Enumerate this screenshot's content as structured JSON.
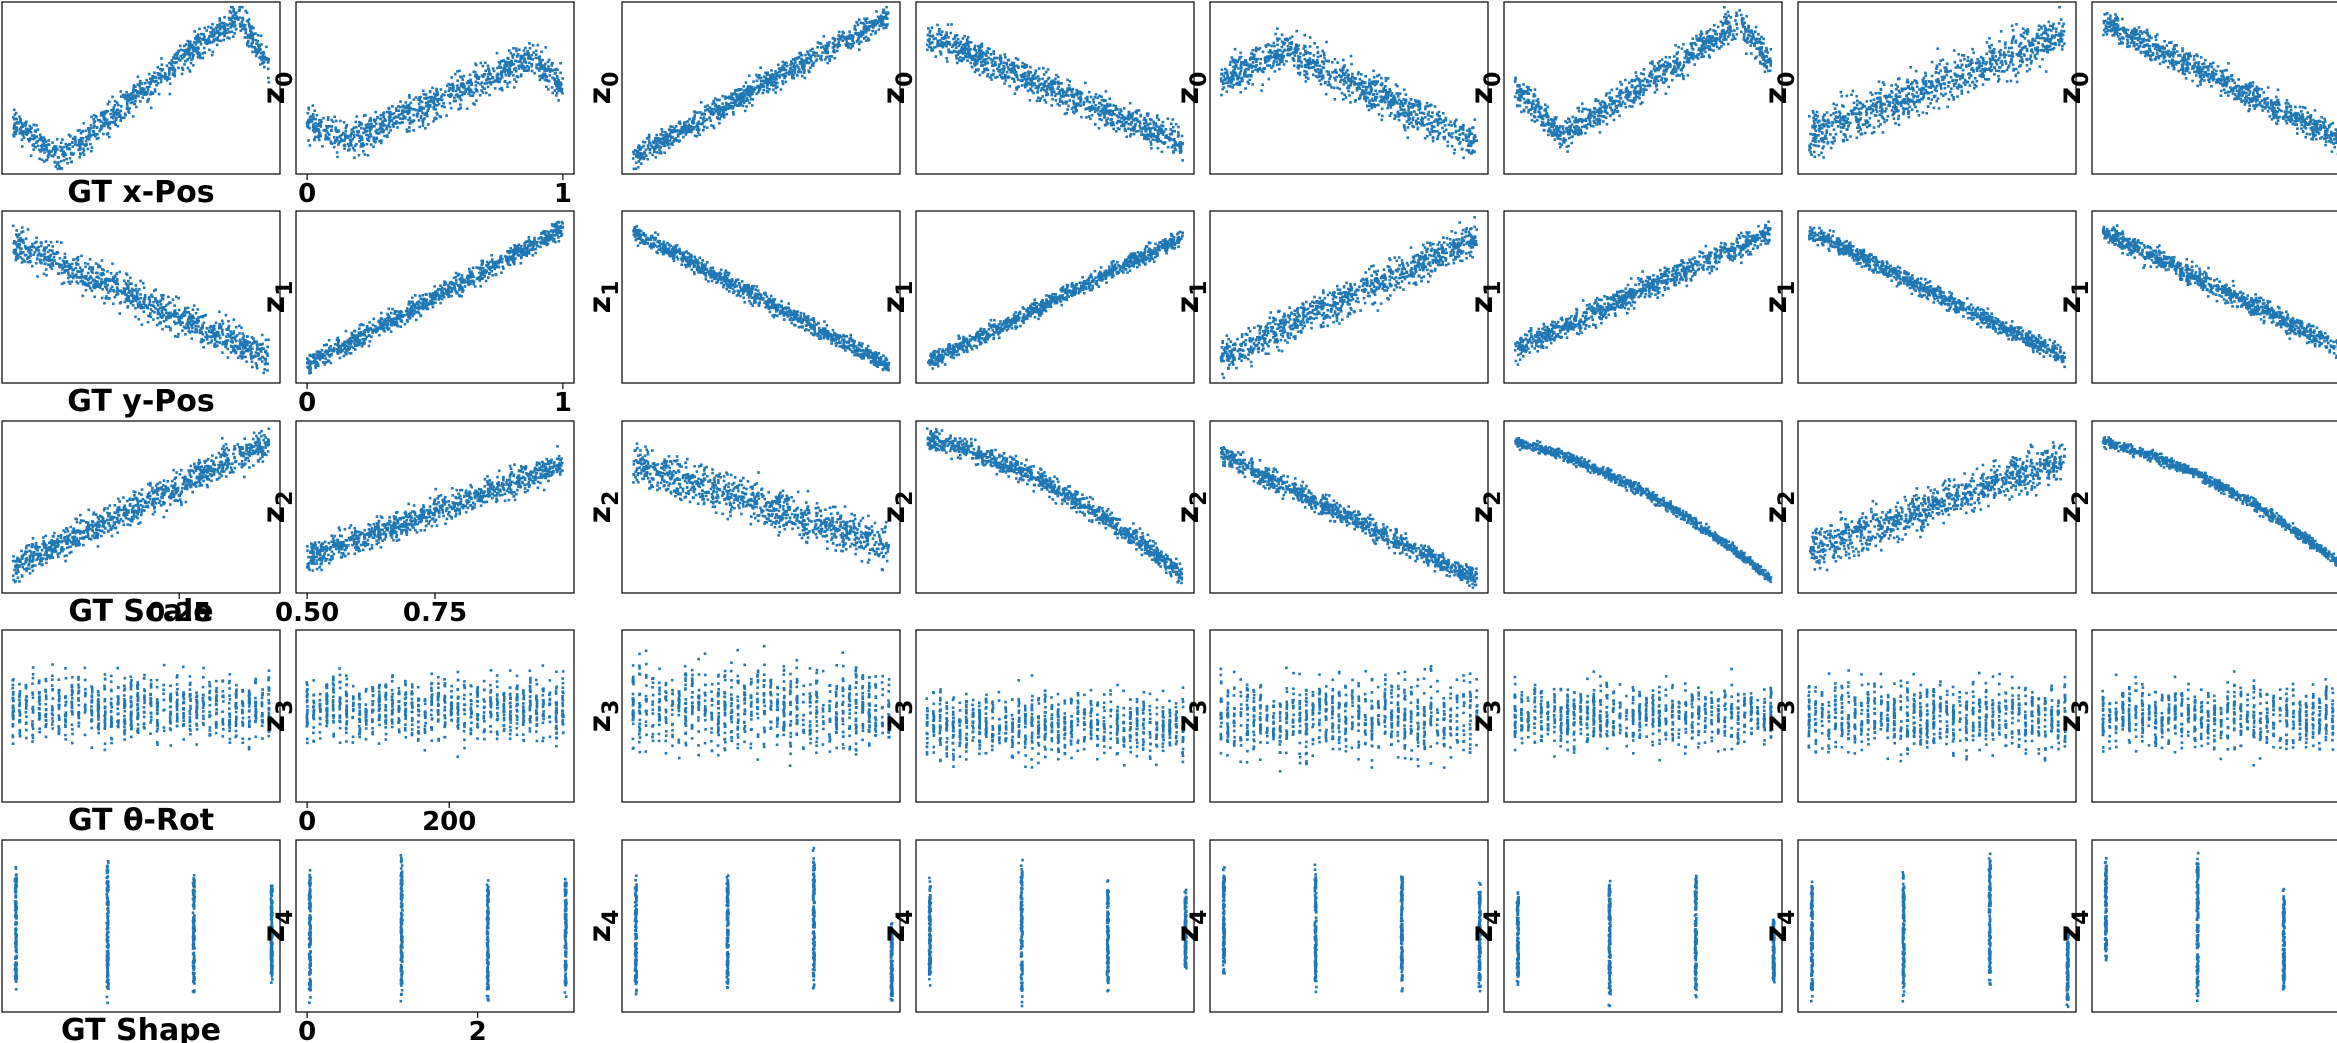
{
  "figure": {
    "point_color": "#1f77b4",
    "latent_symbol": "z",
    "rows": [
      {
        "latent": "0",
        "gt_label": "GT x-Pos",
        "gt_range": [
          0,
          1
        ],
        "ticks": [
          {
            "value": 0,
            "label": "0"
          },
          {
            "value": 1,
            "label": "1"
          }
        ]
      },
      {
        "latent": "1",
        "gt_label": "GT y-Pos",
        "gt_range": [
          0,
          1
        ],
        "ticks": [
          {
            "value": 0,
            "label": "0"
          },
          {
            "value": 1,
            "label": "1"
          }
        ]
      },
      {
        "latent": "2",
        "gt_label": "GT Scale",
        "gt_range": [
          0.5,
          1
        ],
        "ticks": [
          {
            "value": 0.25,
            "label": "0.25"
          },
          {
            "value": 0.5,
            "label": "0.50"
          },
          {
            "value": 0.75,
            "label": "0.75"
          }
        ]
      },
      {
        "latent": "3",
        "gt_label": "GT θ-Rot",
        "gt_range": [
          0,
          360
        ],
        "ticks": [
          {
            "value": 0,
            "label": "0"
          },
          {
            "value": 200,
            "label": "200"
          }
        ]
      },
      {
        "latent": "4",
        "gt_label": "GT Shape",
        "gt_range": [
          0,
          3
        ],
        "ticks": [
          {
            "value": 0,
            "label": "0"
          },
          {
            "value": 2,
            "label": "2"
          }
        ]
      }
    ]
  },
  "chart_data": {
    "type": "scatter",
    "layout": "5 rows x 8 columns",
    "x_values": "ground-truth factor per row",
    "y_values": "latent dimension z0..z4 per row",
    "columns": 8,
    "panels": [
      [
        {
          "relation": "sine",
          "start": 0.3,
          "mid": 0.1,
          "peak": 0.92,
          "spread": 0.09
        },
        {
          "relation": "sine",
          "start": 0.3,
          "mid": 0.2,
          "peak": 0.68,
          "spread": 0.1
        },
        {
          "relation": "linear",
          "from": 0.1,
          "to": 0.92,
          "spread": 0.07
        },
        {
          "relation": "linear",
          "from": 0.8,
          "to": 0.18,
          "spread": 0.09
        },
        {
          "relation": "hump",
          "from": 0.55,
          "peak": 0.72,
          "to": 0.18,
          "spread": 0.11
        },
        {
          "relation": "sine",
          "start": 0.5,
          "mid": 0.22,
          "peak": 0.88,
          "spread": 0.09
        },
        {
          "relation": "linear",
          "from": 0.22,
          "to": 0.82,
          "spread": 0.13
        },
        {
          "relation": "linear",
          "from": 0.88,
          "to": 0.15,
          "spread": 0.08
        }
      ],
      [
        {
          "relation": "linear",
          "from": 0.82,
          "to": 0.15,
          "spread": 0.1
        },
        {
          "relation": "linear",
          "from": 0.1,
          "to": 0.9,
          "spread": 0.06
        },
        {
          "relation": "linear",
          "from": 0.88,
          "to": 0.1,
          "spread": 0.05
        },
        {
          "relation": "linear",
          "from": 0.12,
          "to": 0.85,
          "spread": 0.05
        },
        {
          "relation": "linear",
          "from": 0.15,
          "to": 0.85,
          "spread": 0.1
        },
        {
          "relation": "linear",
          "from": 0.2,
          "to": 0.88,
          "spread": 0.07
        },
        {
          "relation": "linear",
          "from": 0.88,
          "to": 0.15,
          "spread": 0.05
        },
        {
          "relation": "linear",
          "from": 0.88,
          "to": 0.15,
          "spread": 0.06
        }
      ],
      [
        {
          "relation": "linear",
          "from": 0.15,
          "to": 0.88,
          "spread": 0.09
        },
        {
          "relation": "linear",
          "from": 0.2,
          "to": 0.75,
          "spread": 0.08
        },
        {
          "relation": "linear",
          "from": 0.75,
          "to": 0.28,
          "spread": 0.12
        },
        {
          "relation": "concave",
          "from": 0.9,
          "to": 0.1,
          "spread": 0.06
        },
        {
          "relation": "linear",
          "from": 0.8,
          "to": 0.08,
          "spread": 0.06
        },
        {
          "relation": "concave",
          "from": 0.88,
          "to": 0.08,
          "spread": 0.03
        },
        {
          "relation": "linear",
          "from": 0.25,
          "to": 0.78,
          "spread": 0.12
        },
        {
          "relation": "concave",
          "from": 0.88,
          "to": 0.08,
          "spread": 0.03
        }
      ],
      [
        {
          "relation": "noise",
          "center": 0.55,
          "spread": 0.16,
          "bands": 40
        },
        {
          "relation": "noise",
          "center": 0.55,
          "spread": 0.16,
          "bands": 40
        },
        {
          "relation": "noise",
          "center": 0.55,
          "spread": 0.22,
          "bands": 40
        },
        {
          "relation": "noise",
          "center": 0.45,
          "spread": 0.16,
          "bands": 40
        },
        {
          "relation": "noise",
          "center": 0.5,
          "spread": 0.2,
          "bands": 40
        },
        {
          "relation": "noise",
          "center": 0.5,
          "spread": 0.15,
          "bands": 40
        },
        {
          "relation": "noise",
          "center": 0.5,
          "spread": 0.17,
          "bands": 40
        },
        {
          "relation": "noise",
          "center": 0.5,
          "spread": 0.16,
          "bands": 40
        }
      ],
      [
        {
          "relation": "discrete",
          "ranges": [
            [
              0.1,
              0.85
            ],
            [
              0.04,
              0.92
            ],
            [
              0.1,
              0.86
            ],
            [
              0.14,
              0.8
            ]
          ]
        },
        {
          "relation": "discrete",
          "ranges": [
            [
              0.05,
              0.85
            ],
            [
              0.06,
              0.92
            ],
            [
              0.05,
              0.82
            ],
            [
              0.08,
              0.85
            ]
          ]
        },
        {
          "relation": "discrete",
          "ranges": [
            [
              0.1,
              0.8
            ],
            [
              0.14,
              0.82
            ],
            [
              0.12,
              0.96
            ],
            [
              0.05,
              0.52
            ]
          ]
        },
        {
          "relation": "discrete",
          "ranges": [
            [
              0.12,
              0.8
            ],
            [
              0.02,
              0.92
            ],
            [
              0.1,
              0.78
            ],
            [
              0.22,
              0.72
            ]
          ]
        },
        {
          "relation": "discrete",
          "ranges": [
            [
              0.22,
              0.86
            ],
            [
              0.1,
              0.88
            ],
            [
              0.1,
              0.86
            ],
            [
              0.12,
              0.76
            ]
          ]
        },
        {
          "relation": "discrete",
          "ranges": [
            [
              0.15,
              0.7
            ],
            [
              0.02,
              0.8
            ],
            [
              0.06,
              0.86
            ],
            [
              0.14,
              0.58
            ]
          ]
        },
        {
          "relation": "discrete",
          "ranges": [
            [
              0.06,
              0.78
            ],
            [
              0.06,
              0.82
            ],
            [
              0.14,
              0.98
            ],
            [
              0.02,
              0.54
            ]
          ]
        },
        {
          "relation": "discrete",
          "ranges": [
            [
              0.3,
              0.9
            ],
            [
              0.06,
              0.96
            ],
            [
              0.12,
              0.72
            ],
            [
              0.1,
              0.48
            ]
          ]
        }
      ]
    ]
  }
}
